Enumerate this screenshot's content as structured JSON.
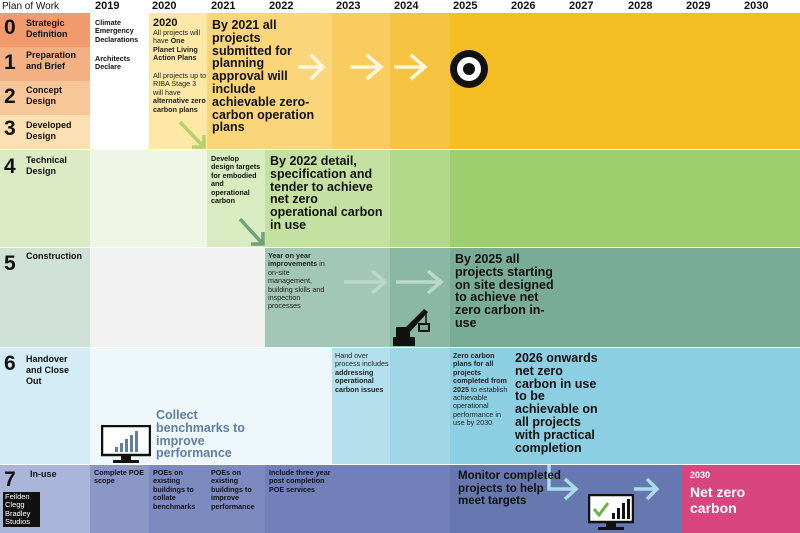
{
  "header": {
    "first_label": "Plan of Work",
    "years": [
      "2019",
      "2020",
      "2021",
      "2022",
      "2023",
      "2024",
      "2025",
      "2026",
      "2027",
      "2028",
      "2029",
      "2030"
    ]
  },
  "stages": [
    {
      "num": "0",
      "name": "Strategic Definition"
    },
    {
      "num": "1",
      "name": "Preparation and Brief"
    },
    {
      "num": "2",
      "name": "Concept Design"
    },
    {
      "num": "3",
      "name": "Developed Design"
    },
    {
      "num": "4",
      "name": "Technical Design"
    },
    {
      "num": "5",
      "name": "Construction"
    },
    {
      "num": "6",
      "name": "Handover and Close Out"
    },
    {
      "num": "7",
      "name": "In-use"
    }
  ],
  "notes": {
    "climate_emergency": "Climate Emergency Declarations",
    "architects_declare": "Architects Declare",
    "y2020_title": "2020",
    "y2020_text_1": "All projects will have",
    "y2020_bold_1": "One Planet Living Action Plans",
    "y2020_text_2": "All projects up to RIBA Stage 3 will have",
    "y2020_bold_2": "alternative zero carbon plans",
    "y2021_planning": "By 2021 all projects submitted for planning approval will include achievable zero-carbon operation plans",
    "develop_targets": "Develop design targets for embodied and operational carbon",
    "y2022_detail": "By 2022 detail, specification and tender to achieve net zero operational carbon in use",
    "year_on_year_bold": "Year on year improvements",
    "year_on_year_text": "in on-site management, building skills and inspection processes",
    "y2025_site": "By 2025 all projects starting on site designed to achieve net zero carbon in-use",
    "handover_text": "Hand over process includes",
    "handover_bold": "addressing operational carbon issues",
    "zero_carbon_plans_bold": "Zero carbon plans for all projects completed from 2025",
    "zero_carbon_plans_text": "to establish achievable operational performance in use by 2030",
    "y2026_onwards": "2026 onwards net zero carbon in use to be achievable on all projects with practical completion",
    "collect_benchmarks": "Collect benchmarks to improve performance",
    "complete_poe": "Complete POE scope",
    "poes_collate": "POEs on existing buildings to collate benchmarks",
    "poes_improve": "POEs on existing buildings to improve performance",
    "include_three_year": "Include three year post completion POE services",
    "monitor": "Monitor completed projects to help meet targets",
    "y2030_label": "2030",
    "net_zero": "Net zero carbon"
  },
  "logo": {
    "lines": [
      "Feilden",
      "Clegg",
      "Bradley",
      "Studios"
    ]
  },
  "icons": [
    "target-icon",
    "crane-icon",
    "monitor-chart-icon",
    "monitor-check-icon"
  ],
  "colors": {
    "stage0_label": "#f19a6e",
    "stage1_label": "#f3b183",
    "stage2_label": "#f7c79a",
    "stage3_label": "#fbe0b3",
    "stage4_label": "#dcebc6",
    "stage5_label": "#cfe0d7",
    "stage6_label": "#d3ecf6",
    "stage7_label": "#a9b6d9",
    "orange": "#f5bf24",
    "green": "#9fcf6c",
    "teal": "#79ac96",
    "blue": "#8ccfe2",
    "navy": "#6778b0",
    "magenta": "#d9457e"
  }
}
